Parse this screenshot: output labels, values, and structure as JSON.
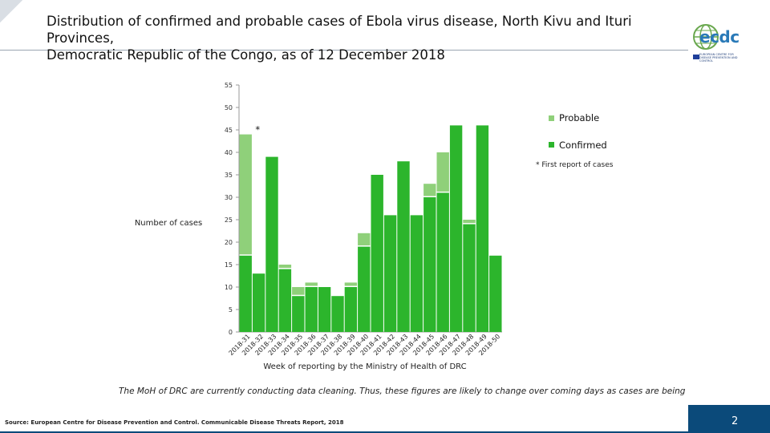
{
  "header": {
    "title_line1": "Distribution of confirmed and probable cases of Ebola virus disease, North Kivu and Ituri Provinces,",
    "title_line2": "Democratic Republic of the Congo, as of 12 December 2018",
    "logo_text": "ecdc",
    "logo_subtext": "EUROPEAN CENTRE FOR DISEASE PREVENTION AND CONTROL"
  },
  "caption": "The MoH of DRC are currently conducting data cleaning. Thus, these figures are likely to change over coming days as cases are being",
  "source": "Source: European Centre for Disease Prevention and Control. Communicable Disease Threats Report, 2018",
  "page_number": "2",
  "colors": {
    "confirmed": "#2cb52c",
    "probable": "#8fd07a"
  },
  "chart_data": {
    "type": "bar",
    "stacked": true,
    "title": "",
    "xlabel": "Week of reporting by the Ministry of Health of DRC",
    "ylabel": "Number of cases",
    "ylim": [
      0,
      55
    ],
    "yticks": [
      0,
      5,
      10,
      15,
      20,
      25,
      30,
      35,
      40,
      45,
      50,
      55
    ],
    "categories": [
      "2018-31",
      "2018-32",
      "2018-33",
      "2018-34",
      "2018-35",
      "2018-36",
      "2018-37",
      "2018-38",
      "2018-39",
      "2018-40",
      "2018-41",
      "2018-42",
      "2018-43",
      "2018-44",
      "2018-45",
      "2018-46",
      "2018-47",
      "2018-48",
      "2018-49",
      "2018-50"
    ],
    "series": [
      {
        "name": "Confirmed",
        "values": [
          17,
          13,
          39,
          14,
          8,
          10,
          10,
          8,
          10,
          19,
          35,
          26,
          38,
          26,
          30,
          31,
          46,
          24,
          46,
          17
        ]
      },
      {
        "name": "Probable",
        "values": [
          27,
          0,
          0,
          1,
          2,
          1,
          0,
          0,
          1,
          3,
          0,
          0,
          0,
          0,
          3,
          9,
          0,
          1,
          0,
          0
        ]
      }
    ],
    "legend": [
      "Probable",
      "Confirmed"
    ],
    "legend_position": "right",
    "annotations": [
      {
        "text": "*",
        "category": "2018-31"
      },
      {
        "text": "* First report of cases"
      }
    ]
  }
}
